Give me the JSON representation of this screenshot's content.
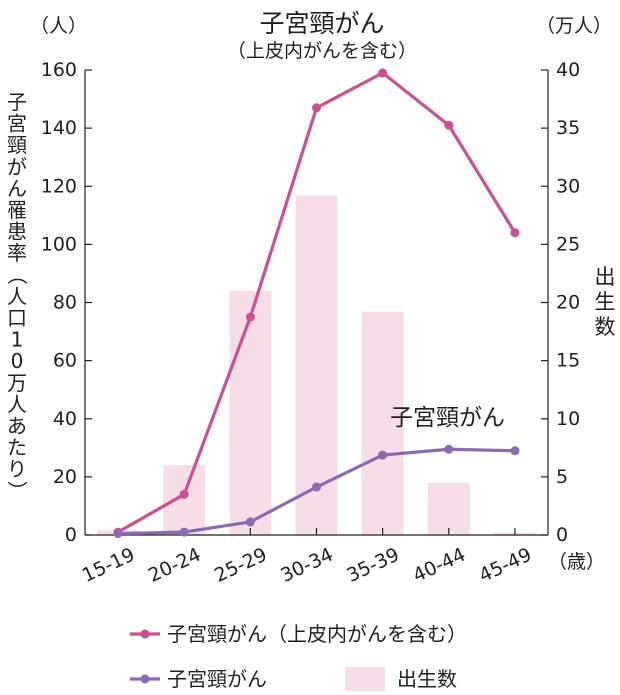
{
  "chart_data": {
    "type": "bar+line",
    "title": "子宮頸がん",
    "subtitle": "（上皮内がんを含む）",
    "categories": [
      "15-19",
      "20-24",
      "25-29",
      "30-34",
      "35-39",
      "40-44",
      "45-49"
    ],
    "x_unit": "（歳）",
    "y_left": {
      "unit": "（人）",
      "label": "子宮頸がん罹患率（人口10万人あたり）",
      "range": [
        0,
        160
      ],
      "ticks": [
        0,
        20,
        40,
        60,
        80,
        100,
        120,
        140,
        160
      ]
    },
    "y_right": {
      "unit": "（万人）",
      "label": "出生数",
      "range": [
        0,
        40
      ],
      "ticks": [
        0,
        5,
        10,
        15,
        20,
        25,
        30,
        35,
        40
      ]
    },
    "series": [
      {
        "name": "子宮頸がん（上皮内がんを含む）",
        "type": "line",
        "axis": "left",
        "color": "#cc4f92",
        "values": [
          1,
          14,
          75,
          147,
          159,
          141,
          104
        ]
      },
      {
        "name": "子宮頸がん",
        "type": "line",
        "axis": "left",
        "color": "#8b6ab1",
        "values": [
          0.5,
          1,
          4.5,
          16.5,
          27.5,
          29.5,
          29
        ]
      },
      {
        "name": "出生数",
        "type": "bar",
        "axis": "right",
        "color": "#f6dde8",
        "values": [
          0.4,
          6,
          21,
          29.2,
          19.2,
          4.5,
          0.2
        ]
      }
    ],
    "annotations": [
      {
        "text": "子宮頸がん",
        "series": "子宮頸がん"
      }
    ],
    "grid": false,
    "legend": {
      "placement": "bottom",
      "entries": [
        "子宮頸がん（上皮内がんを含む）",
        "子宮頸がん",
        "出生数"
      ]
    }
  }
}
